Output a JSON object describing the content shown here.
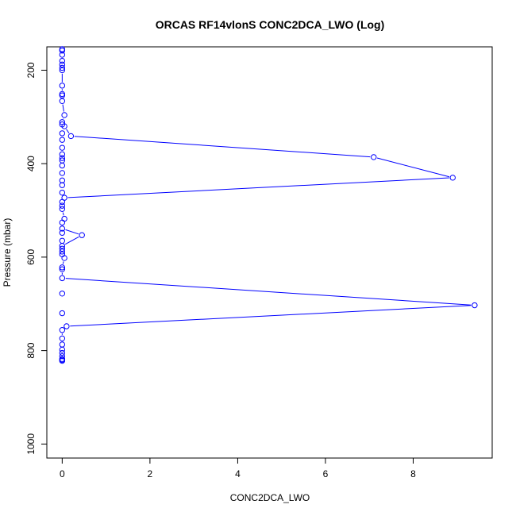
{
  "chart_data": {
    "type": "line",
    "title": "ORCAS RF14vlonS CONC2DCA_LWO (Log)",
    "xlabel": "CONC2DCA_LWO",
    "ylabel": "Pressure (mbar)",
    "xlim": [
      -0.35,
      9.8
    ],
    "ylim": [
      1030,
      150
    ],
    "y_inverted": true,
    "grid": false,
    "line_color": "#0000ff",
    "marker": "open-circle",
    "x_ticks": [
      0,
      2,
      4,
      6,
      8
    ],
    "y_ticks": [
      200,
      400,
      600,
      800,
      1000
    ],
    "series": [
      {
        "name": "",
        "points": [
          {
            "x": 0,
            "y": 822
          },
          {
            "x": 0,
            "y": 820
          },
          {
            "x": 0,
            "y": 818
          },
          {
            "x": 0,
            "y": 812
          },
          {
            "x": 0,
            "y": 805
          },
          {
            "x": 0,
            "y": 798
          },
          {
            "x": 0,
            "y": 787
          },
          {
            "x": 0,
            "y": 774
          },
          {
            "x": 0,
            "y": 756
          },
          {
            "x": 0.1,
            "y": 748
          },
          {
            "x": 9.4,
            "y": 703
          },
          {
            "x": 0,
            "y": 645
          },
          {
            "x": 0,
            "y": 626
          },
          {
            "x": 0,
            "y": 622
          },
          {
            "x": 0.05,
            "y": 602
          },
          {
            "x": 0,
            "y": 594
          },
          {
            "x": 0,
            "y": 588
          },
          {
            "x": 0,
            "y": 582
          },
          {
            "x": 0,
            "y": 576
          },
          {
            "x": 0.45,
            "y": 553
          },
          {
            "x": 0,
            "y": 539
          },
          {
            "x": 0,
            "y": 526
          },
          {
            "x": 0.05,
            "y": 518
          },
          {
            "x": 0,
            "y": 497
          },
          {
            "x": 0,
            "y": 490
          },
          {
            "x": 0,
            "y": 482
          },
          {
            "x": 0.05,
            "y": 473
          },
          {
            "x": 8.9,
            "y": 430
          },
          {
            "x": 7.1,
            "y": 386
          },
          {
            "x": 0.2,
            "y": 341
          },
          {
            "x": 0.05,
            "y": 320
          },
          {
            "x": 0,
            "y": 316
          },
          {
            "x": 0,
            "y": 311
          },
          {
            "x": 0.05,
            "y": 296
          },
          {
            "x": 0,
            "y": 266
          },
          {
            "x": 0,
            "y": 254
          },
          {
            "x": 0,
            "y": 251
          },
          {
            "x": 0,
            "y": 233
          },
          {
            "x": 0,
            "y": 200
          },
          {
            "x": 0,
            "y": 195
          },
          {
            "x": 0,
            "y": 188
          },
          {
            "x": 0,
            "y": 180
          },
          {
            "x": 0,
            "y": 167
          },
          {
            "x": 0,
            "y": 158
          },
          {
            "x": 0,
            "y": 155
          }
        ],
        "extra_points": [
          {
            "x": 0,
            "y": 462
          },
          {
            "x": 0,
            "y": 446
          },
          {
            "x": 0,
            "y": 436
          },
          {
            "x": 0,
            "y": 420
          },
          {
            "x": 0,
            "y": 404
          },
          {
            "x": 0,
            "y": 393
          },
          {
            "x": 0,
            "y": 388
          },
          {
            "x": 0,
            "y": 380
          },
          {
            "x": 0,
            "y": 366
          },
          {
            "x": 0,
            "y": 349
          },
          {
            "x": 0,
            "y": 335
          },
          {
            "x": 0,
            "y": 565
          },
          {
            "x": 0,
            "y": 548
          },
          {
            "x": 0,
            "y": 678
          },
          {
            "x": 0,
            "y": 720
          }
        ]
      }
    ]
  }
}
